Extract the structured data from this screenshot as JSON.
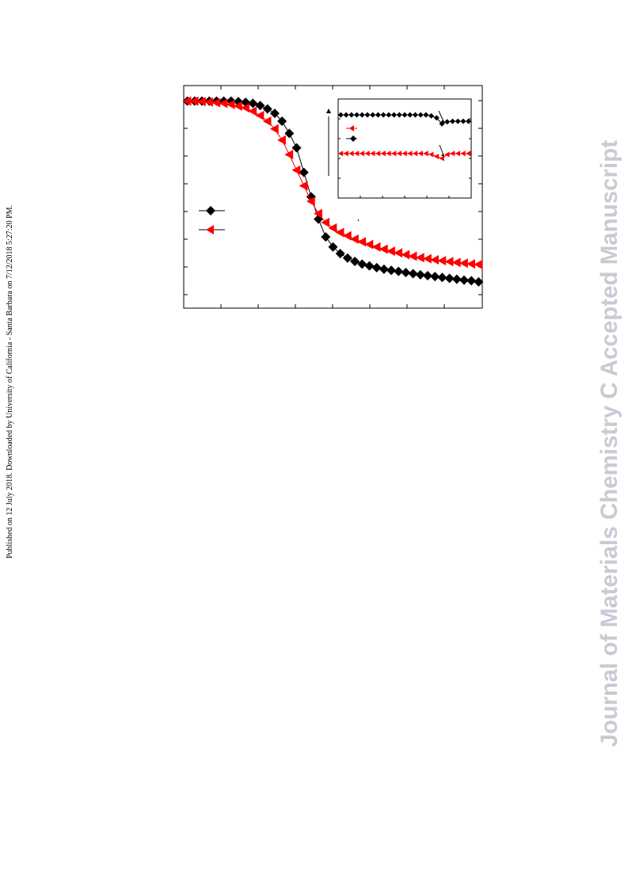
{
  "side_note": "Published on 12 July 2018. Downloaded by University of California - Santa Barbara on 7/12/2018 5:27:20 PM.",
  "watermark": "Journal of Materials Chemistry C Accepted Manuscript",
  "chart_data": [
    {
      "type": "line",
      "x": [
        0,
        1,
        2,
        3,
        4,
        5,
        6,
        7,
        8,
        9,
        10,
        11,
        12,
        13,
        14,
        15,
        16,
        17,
        18,
        19,
        20,
        21,
        22,
        23,
        24,
        25,
        26,
        27,
        28,
        29,
        30,
        31,
        32,
        33,
        34,
        35,
        36,
        37,
        38,
        39,
        40
      ],
      "xlim": [
        -0.5,
        40.5
      ],
      "ylim": [
        0,
        100
      ],
      "series": [
        {
          "color": "#000000",
          "marker": "diamond",
          "values": [
            93,
            93,
            93,
            93,
            93,
            93,
            93,
            92.8,
            92.5,
            92,
            91,
            89.5,
            87.5,
            84,
            78.5,
            72,
            61,
            50,
            40,
            32,
            27.5,
            24.5,
            22.5,
            21,
            19.8,
            19,
            18.2,
            17.5,
            17,
            16.5,
            16,
            15.5,
            15,
            14.6,
            14.2,
            13.8,
            13.4,
            13,
            12.6,
            12.3,
            11.8
          ]
        },
        {
          "color": "#ff0000",
          "marker": "triangle-left",
          "values": [
            93,
            93,
            92.8,
            92.6,
            92.3,
            92,
            91.5,
            90.8,
            90,
            88.5,
            86.5,
            84,
            80.5,
            75.5,
            69,
            62,
            55,
            48,
            42.5,
            38.5,
            36,
            34,
            32.5,
            31,
            29.8,
            28.6,
            27.5,
            26.5,
            25.6,
            24.8,
            24,
            23.3,
            22.7,
            22.2,
            21.7,
            21.3,
            20.9,
            20.5,
            20.2,
            19.9,
            19.6
          ]
        }
      ]
    },
    {
      "type": "line",
      "x": [
        0,
        1,
        2,
        3,
        4,
        5,
        6,
        7,
        8,
        9,
        10,
        11,
        12,
        13,
        14,
        15,
        16,
        17,
        18,
        19,
        20,
        21,
        22,
        23,
        24
      ],
      "xlim": [
        -0.5,
        24.5
      ],
      "ylim": [
        0,
        100
      ],
      "series": [
        {
          "color": "#000000",
          "marker": "diamond",
          "values": [
            84,
            84,
            84,
            84,
            84,
            84,
            84,
            84,
            84,
            84,
            84,
            84,
            84,
            84,
            84,
            84,
            84,
            83,
            81,
            75,
            77,
            77.5,
            77.5,
            77.5,
            77.5
          ]
        },
        {
          "color": "#ff0000",
          "marker": "triangle-left",
          "values": [
            45,
            45,
            45,
            45,
            45,
            45,
            45,
            45,
            45,
            45,
            45,
            45,
            45,
            45,
            45,
            45,
            45,
            44,
            42,
            40,
            44,
            45,
            45,
            45,
            45
          ]
        }
      ]
    }
  ]
}
